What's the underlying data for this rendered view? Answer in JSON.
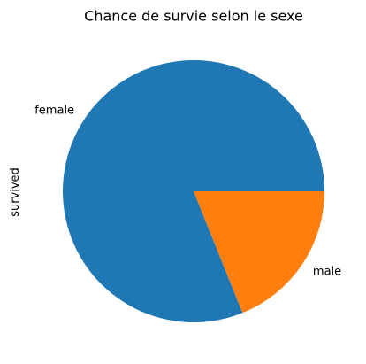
{
  "chart_data": {
    "type": "pie",
    "title": "Chance de survie selon le sexe",
    "ylabel": "survived",
    "categories": [
      "female",
      "male"
    ],
    "values": [
      0.811,
      0.189
    ],
    "colors": [
      "#1f77b4",
      "#ff7f0e"
    ],
    "start_angle_deg": 0,
    "direction": "counterclockwise"
  }
}
